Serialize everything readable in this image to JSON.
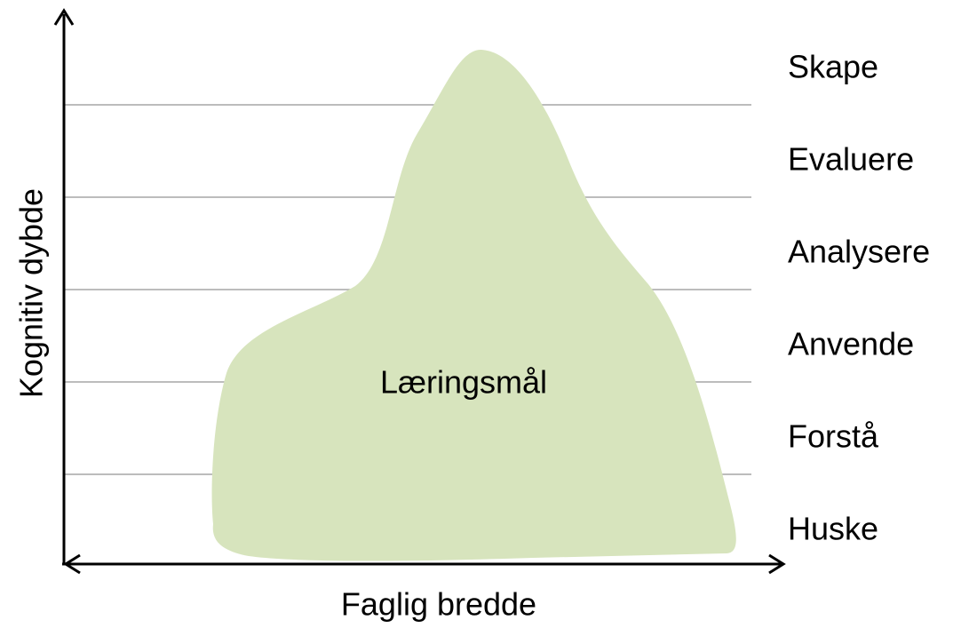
{
  "diagram": {
    "y_axis_label": "Kognitiv dybde",
    "x_axis_label": "Faglig bredde",
    "shape_label": "Læringsmål",
    "levels": [
      "Skape",
      "Evaluere",
      "Analysere",
      "Anvende",
      "Forstå",
      "Huske"
    ]
  }
}
